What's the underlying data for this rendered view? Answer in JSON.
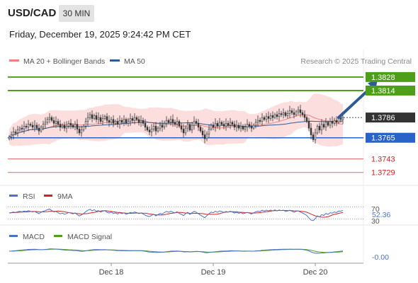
{
  "header": {
    "symbol": "USD/CAD",
    "timeframe": "30 MIN",
    "datetime": "Friday, December 19, 2025 9:24:42 PM CET"
  },
  "legend": {
    "ma20_label": "MA 20 + Bollinger Bands",
    "ma20_color": "#f08080",
    "ma50_label": "MA 50",
    "ma50_color": "#2e5b96"
  },
  "copyright": "Research © 2025 Trading Central",
  "chart_data": [
    {
      "type": "candlestick",
      "ylim": [
        1.372,
        1.3836
      ],
      "xlim": [
        0,
        156
      ],
      "levels": [
        {
          "value": 1.3828,
          "label": "1.3828",
          "kind": "resistance",
          "color": "#4f9e1a"
        },
        {
          "value": 1.3814,
          "label": "1.3814",
          "kind": "resistance",
          "color": "#4f9e1a"
        },
        {
          "value": 1.3786,
          "label": "1.3786",
          "kind": "last-price",
          "color": "#333333"
        },
        {
          "value": 1.3765,
          "label": "1.3765",
          "kind": "pivot",
          "color": "#2a63c8"
        },
        {
          "value": 1.3743,
          "label": "1.3743",
          "kind": "support",
          "color": "#d62020"
        },
        {
          "value": 1.3729,
          "label": "1.3729",
          "kind": "support",
          "color": "#d62020"
        }
      ],
      "arrow": {
        "from": [
          155,
          1.3786
        ],
        "to": [
          170,
          1.3826
        ],
        "color": "#2e5b96"
      },
      "close": [
        1.3766,
        1.3768,
        1.3771,
        1.377,
        1.3773,
        1.3775,
        1.3774,
        1.3777,
        1.3776,
        1.3779,
        1.3778,
        1.3776,
        1.3778,
        1.3775,
        1.3772,
        1.3776,
        1.3779,
        1.3781,
        1.3784,
        1.3786,
        1.3783,
        1.378,
        1.3782,
        1.3779,
        1.3776,
        1.3778,
        1.3775,
        1.3777,
        1.378,
        1.3778,
        1.3776,
        1.3779,
        1.3774,
        1.377,
        1.3773,
        1.3777,
        1.3782,
        1.3786,
        1.3789,
        1.3785,
        1.3788,
        1.3784,
        1.3786,
        1.3782,
        1.3785,
        1.3787,
        1.3783,
        1.3781,
        1.3784,
        1.378,
        1.3782,
        1.3779,
        1.3783,
        1.3781,
        1.3784,
        1.378,
        1.3782,
        1.3785,
        1.3783,
        1.3786,
        1.3784,
        1.3781,
        1.3783,
        1.378,
        1.3776,
        1.3773,
        1.3771,
        1.3774,
        1.3777,
        1.3772,
        1.3775,
        1.3778,
        1.3776,
        1.378,
        1.3783,
        1.3781,
        1.3784,
        1.3781,
        1.3779,
        1.3782,
        1.3777,
        1.3774,
        1.377,
        1.3775,
        1.3779,
        1.3773,
        1.3778,
        1.3782,
        1.378,
        1.3776,
        1.3772,
        1.3768,
        1.3764,
        1.3769,
        1.3774,
        1.3778,
        1.3776,
        1.378,
        1.3777,
        1.3781,
        1.3779,
        1.3777,
        1.378,
        1.3778,
        1.3781,
        1.3779,
        1.3776,
        1.3778,
        1.3775,
        1.3777,
        1.3774,
        1.3776,
        1.3779,
        1.3777,
        1.3775,
        1.3778,
        1.3781,
        1.3783,
        1.3782,
        1.3786,
        1.3784,
        1.3787,
        1.3785,
        1.3788,
        1.3786,
        1.3789,
        1.3787,
        1.379,
        1.3789,
        1.3791,
        1.3788,
        1.379,
        1.3793,
        1.3791,
        1.3789,
        1.3792,
        1.3794,
        1.3791,
        1.3789,
        1.3786,
        1.3782,
        1.3775,
        1.3768,
        1.3763,
        1.377,
        1.3777,
        1.3773,
        1.3779,
        1.3776,
        1.3781,
        1.3778,
        1.3782,
        1.378,
        1.3783,
        1.3781,
        1.3785,
        1.3784,
        1.3786
      ]
    },
    {
      "type": "line",
      "name": "RSI",
      "legend": [
        "RSI",
        "9MA"
      ],
      "colors": [
        "#4a72c8",
        "#d62020"
      ],
      "levels": [
        70,
        30
      ],
      "level_labels": [
        "70",
        "30"
      ],
      "last_value": "52.36",
      "ylim": [
        20,
        80
      ]
    },
    {
      "type": "line",
      "name": "MACD",
      "legend": [
        "MACD",
        "MACD Signal"
      ],
      "colors": [
        "#4a72c8",
        "#4f9e1a"
      ],
      "last_value": "-0.00",
      "ylim": [
        -0.0015,
        0.0015
      ]
    }
  ],
  "xaxis": {
    "ticks": [
      {
        "index": 48,
        "label": "Dec 18"
      },
      {
        "index": 96,
        "label": "Dec 19"
      },
      {
        "index": 144,
        "label": "Dec 20"
      }
    ]
  }
}
